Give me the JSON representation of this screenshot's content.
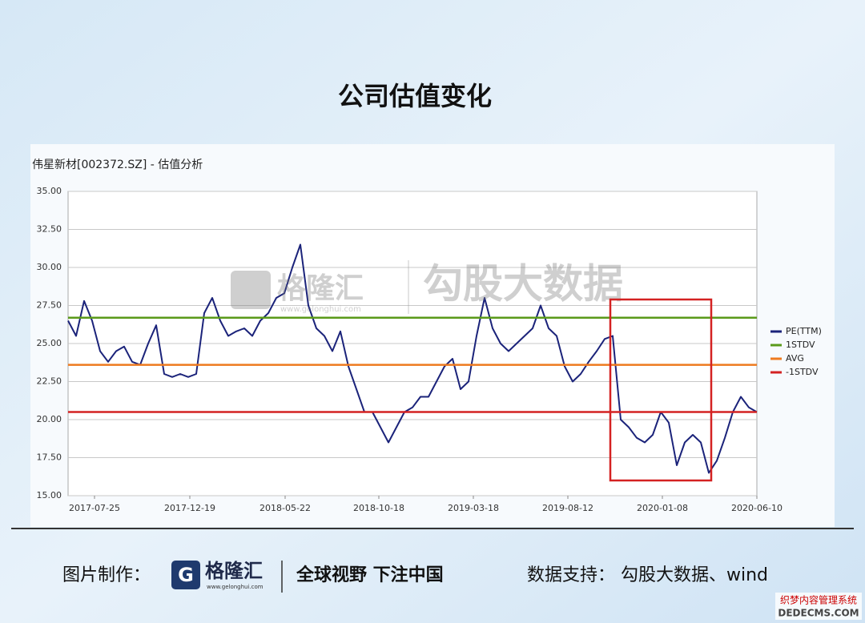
{
  "chart_data": {
    "type": "line",
    "title": "公司估值变化",
    "subtitle": "伟星新材[002372.SZ] - 估值分析",
    "xlim": [
      0,
      86
    ],
    "xticks": [
      {
        "value": 3.3,
        "label": "2017-07-25"
      },
      {
        "value": 15.2,
        "label": "2017-12-19"
      },
      {
        "value": 27.1,
        "label": "2018-05-22"
      },
      {
        "value": 38.8,
        "label": "2018-10-18"
      },
      {
        "value": 50.6,
        "label": "2019-03-18"
      },
      {
        "value": 62.4,
        "label": "2019-08-12"
      },
      {
        "value": 74.2,
        "label": "2020-01-08"
      },
      {
        "value": 86,
        "label": "2020-06-10"
      }
    ],
    "ylim": [
      15,
      35
    ],
    "yticks": [
      {
        "value": 15,
        "label": "15.00"
      },
      {
        "value": 17.5,
        "label": "17.50"
      },
      {
        "value": 20,
        "label": "20.00"
      },
      {
        "value": 22.5,
        "label": "22.50"
      },
      {
        "value": 25,
        "label": "25.00"
      },
      {
        "value": 27.5,
        "label": "27.50"
      },
      {
        "value": 30,
        "label": "30.00"
      },
      {
        "value": 32.5,
        "label": "32.50"
      },
      {
        "value": 35,
        "label": "35.00"
      }
    ],
    "grid": true,
    "legend": "right",
    "series": [
      {
        "name": "PE(TTM)",
        "color": "#1b237a",
        "values": [
          26.5,
          25.5,
          27.8,
          26.5,
          24.5,
          23.8,
          24.5,
          24.8,
          23.8,
          23.6,
          25.0,
          26.2,
          23.0,
          22.8,
          23.0,
          22.8,
          23.0,
          27.0,
          28.0,
          26.5,
          25.5,
          25.8,
          26.0,
          25.5,
          26.5,
          27.0,
          28.0,
          28.3,
          30.0,
          31.5,
          27.5,
          26.0,
          25.5,
          24.5,
          25.8,
          23.5,
          22.0,
          20.5,
          20.5,
          19.5,
          18.5,
          19.5,
          20.5,
          20.8,
          21.5,
          21.5,
          22.5,
          23.5,
          24.0,
          22.0,
          22.5,
          25.5,
          28.0,
          26.0,
          25.0,
          24.5,
          25.0,
          25.5,
          26.0,
          27.5,
          26.0,
          25.5,
          23.5,
          22.5,
          23.0,
          23.8,
          24.5,
          25.3,
          25.5,
          20.0,
          19.5,
          18.8,
          18.5,
          19.0,
          20.5,
          19.8,
          17.0,
          18.5,
          19.0,
          18.5,
          16.5,
          17.3,
          18.8,
          20.5,
          21.5,
          20.8,
          20.5
        ]
      },
      {
        "name": "1STDV",
        "color": "#5a9a1a",
        "value": 26.7
      },
      {
        "name": "AVG",
        "color": "#ee7a1e",
        "value": 23.6
      },
      {
        "name": "-1STDV",
        "color": "#d42222",
        "value": 20.5
      }
    ],
    "watermark": {
      "brand": "格隆汇",
      "site": "www.gelonghui.com",
      "text": "勾股大数据"
    }
  },
  "footer": {
    "made_by": "图片制作：",
    "brand": "格隆汇",
    "site": "www.gelonghui.com",
    "slogan": "全球视野 下注中国",
    "source": "数据支持： 勾股大数据、wind"
  },
  "corner": {
    "line1": "织梦内容管理系统",
    "line2": "DEDECMS.COM"
  }
}
